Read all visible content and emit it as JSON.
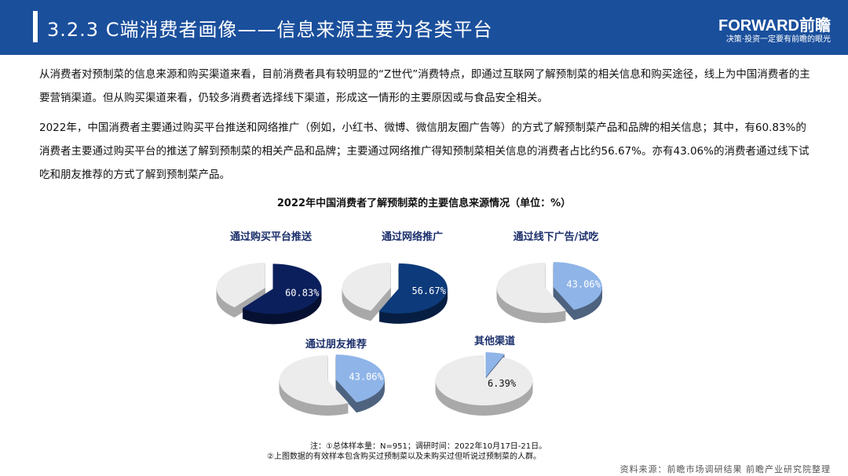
{
  "header": {
    "title": "3.2.3 C端消费者画像——信息来源主要为各类平台",
    "logo": "FORWARD前瞻",
    "slogan": "决策·投资一定要有前瞻的眼光"
  },
  "paragraphs": [
    "从消费者对预制菜的信息来源和购买渠道来看，目前消费者具有较明显的“Z世代”消费特点，即通过互联网了解预制菜的相关信息和购买途径，线上为中国消费者的主要营销渠道。但从购买渠道来看，仍较多消费者选择线下渠道，形成这一情形的主要原因或与食品安全相关。",
    "2022年，中国消费者主要通过购买平台推送和网络推广（例如，小红书、微博、微信朋友圈广告等）的方式了解预制菜产品和品牌的相关信息；其中，有60.83%的消费者主要通过购买平台的推送了解到预制菜的相关产品和品牌；主要通过网络推广得知预制菜相关信息的消费者占比约56.67%。亦有43.06%的消费者通过线下试吃和朋友推荐的方式了解到预制菜产品。"
  ],
  "chart_data": {
    "type": "pie",
    "title": "2022年中国消费者了解预制菜的主要信息来源情况（单位：%）",
    "unit": "%",
    "charts": [
      {
        "label": "通过购买平台推送",
        "value": 60.83,
        "value_label": "60.83%",
        "color": "#0b1f5c",
        "rest_color": "#ececec"
      },
      {
        "label": "通过网络推广",
        "value": 56.67,
        "value_label": "56.67%",
        "color": "#0d3a7a",
        "rest_color": "#ececec"
      },
      {
        "label": "通过线下广告/试吃",
        "value": 43.06,
        "value_label": "43.06%",
        "color": "#8fb4e8",
        "rest_color": "#ececec"
      },
      {
        "label": "通过朋友推荐",
        "value": 43.06,
        "value_label": "43.06%",
        "color": "#8fb4e8",
        "rest_color": "#ececec"
      },
      {
        "label": "其他渠道",
        "value": 6.39,
        "value_label": "6.39%",
        "color": "#8fb4e8",
        "rest_color": "#ececec"
      }
    ]
  },
  "notes": [
    "注：①总体样本量：N=951；调研时间：2022年10月17日-21日。",
    "②上图数据的有效样本包含购买过预制菜以及未购买过但听说过预制菜的人群。"
  ],
  "source": "资料来源：前瞻市场调研结果 前瞻产业研究院整理"
}
